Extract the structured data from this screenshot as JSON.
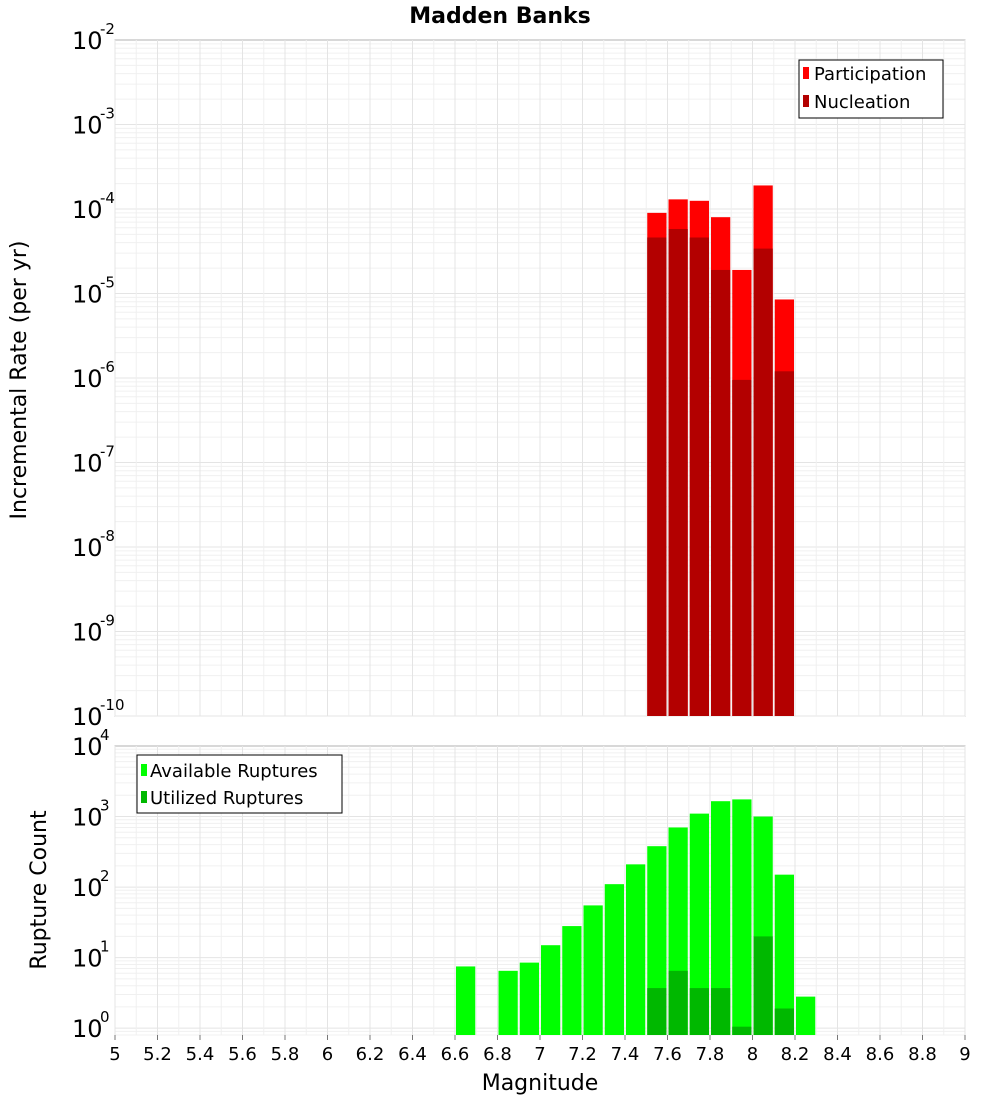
{
  "chart_data": [
    {
      "type": "bar",
      "title": "Madden Banks",
      "ylabel": "Incremental Rate (per yr)",
      "xlabel": "",
      "yscale": "log",
      "ylim": [
        1e-10,
        0.01
      ],
      "xlim": [
        5,
        9
      ],
      "bar_width": 0.1,
      "legend_position": "top-right",
      "grid": true,
      "y_ticks": [
        {
          "base": "10",
          "exp": "-10",
          "value": 1e-10
        },
        {
          "base": "10",
          "exp": "-9",
          "value": 1e-09
        },
        {
          "base": "10",
          "exp": "-8",
          "value": 1e-08
        },
        {
          "base": "10",
          "exp": "-7",
          "value": 1e-07
        },
        {
          "base": "10",
          "exp": "-6",
          "value": 1e-06
        },
        {
          "base": "10",
          "exp": "-5",
          "value": 1e-05
        },
        {
          "base": "10",
          "exp": "-4",
          "value": 0.0001
        },
        {
          "base": "10",
          "exp": "-3",
          "value": 0.001
        },
        {
          "base": "10",
          "exp": "-2",
          "value": 0.01
        }
      ],
      "series": [
        {
          "name": "Participation",
          "color": "#ff0000",
          "x": [
            7.55,
            7.65,
            7.75,
            7.85,
            7.95,
            8.05,
            8.15
          ],
          "values": [
            9e-05,
            0.00013,
            0.000125,
            8e-05,
            1.9e-05,
            0.00019,
            8.5e-06
          ]
        },
        {
          "name": "Nucleation",
          "color": "#b30000",
          "x": [
            7.55,
            7.65,
            7.75,
            7.85,
            7.95,
            8.05,
            8.15
          ],
          "values": [
            4.6e-05,
            5.8e-05,
            4.6e-05,
            1.9e-05,
            9.5e-07,
            3.4e-05,
            1.2e-06
          ]
        }
      ]
    },
    {
      "type": "bar",
      "title": "",
      "ylabel": "Rupture Count",
      "xlabel": "Magnitude",
      "yscale": "log",
      "ylim": [
        0.8,
        10000
      ],
      "xlim": [
        5,
        9
      ],
      "bar_width": 0.1,
      "legend_position": "top-left",
      "grid": true,
      "y_ticks": [
        {
          "base": "10",
          "exp": "0",
          "value": 1
        },
        {
          "base": "10",
          "exp": "1",
          "value": 10
        },
        {
          "base": "10",
          "exp": "2",
          "value": 100
        },
        {
          "base": "10",
          "exp": "3",
          "value": 1000
        },
        {
          "base": "10",
          "exp": "4",
          "value": 10000
        }
      ],
      "x_ticks": [
        "5",
        "5.2",
        "5.4",
        "5.6",
        "5.8",
        "6",
        "6.2",
        "6.4",
        "6.6",
        "6.8",
        "7",
        "7.2",
        "7.4",
        "7.6",
        "7.8",
        "8",
        "8.2",
        "8.4",
        "8.6",
        "8.8",
        "9"
      ],
      "series": [
        {
          "name": "Available Ruptures",
          "color": "#00ff00",
          "x": [
            6.65,
            6.85,
            6.95,
            7.05,
            7.15,
            7.25,
            7.35,
            7.45,
            7.55,
            7.65,
            7.75,
            7.85,
            7.95,
            8.05,
            8.15,
            8.25
          ],
          "values": [
            7.5,
            6.5,
            8.5,
            15,
            28,
            55,
            110,
            210,
            380,
            700,
            1100,
            1650,
            1750,
            1000,
            150,
            2.8
          ]
        },
        {
          "name": "Utilized Ruptures",
          "color": "#00b800",
          "x": [
            7.55,
            7.65,
            7.75,
            7.85,
            7.95,
            8.05,
            8.15
          ],
          "values": [
            3.7,
            6.5,
            3.7,
            3.7,
            1.05,
            20,
            1.9
          ]
        }
      ]
    }
  ]
}
